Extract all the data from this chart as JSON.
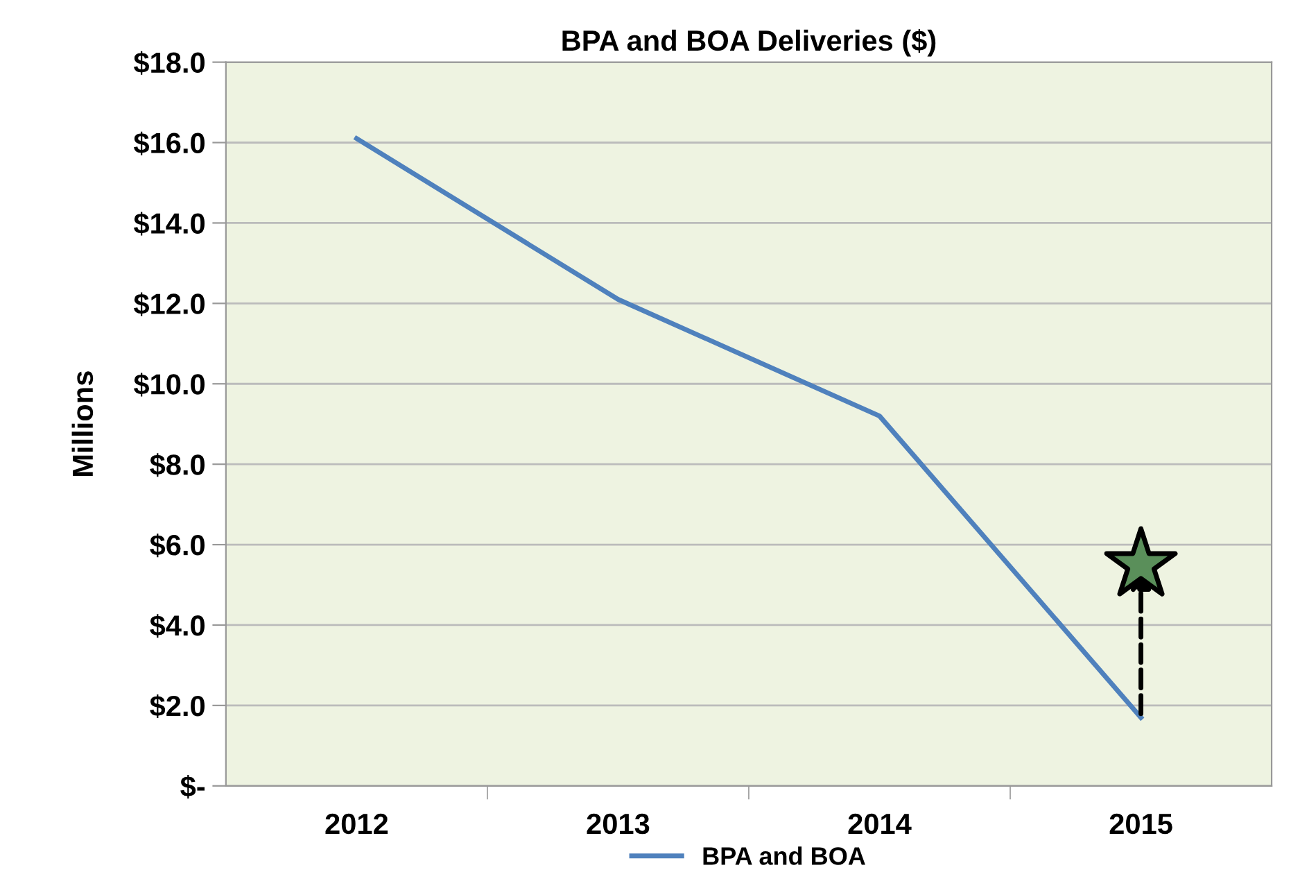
{
  "chart_data": {
    "type": "line",
    "title": "BPA and BOA Deliveries ($)",
    "ylabel": "Millions",
    "categories": [
      "2012",
      "2013",
      "2014",
      "2015"
    ],
    "series": [
      {
        "name": "BPA and BOA",
        "color": "#4f81bd",
        "values": [
          16.1,
          12.1,
          9.2,
          1.7
        ]
      },
      {
        "type": "scatter",
        "color": "#5a8f5a",
        "values": [
          null,
          null,
          null,
          5.5
        ],
        "marker": "star"
      }
    ],
    "ylim": [
      0,
      18
    ],
    "yticks": [
      {
        "value": 0,
        "label": "$-"
      },
      {
        "value": 2,
        "label": "$2.0"
      },
      {
        "value": 4,
        "label": "$4.0"
      },
      {
        "value": 6,
        "label": "$6.0"
      },
      {
        "value": 8,
        "label": "$8.0"
      },
      {
        "value": 10,
        "label": "$10.0"
      },
      {
        "value": 12,
        "label": "$12.0"
      },
      {
        "value": 14,
        "label": "$14.0"
      },
      {
        "value": 16,
        "label": "$16.0"
      },
      {
        "value": 18,
        "label": "$18.0"
      }
    ],
    "grid": "y",
    "legend": "bottom",
    "marker": "none",
    "line_style": "solid"
  }
}
